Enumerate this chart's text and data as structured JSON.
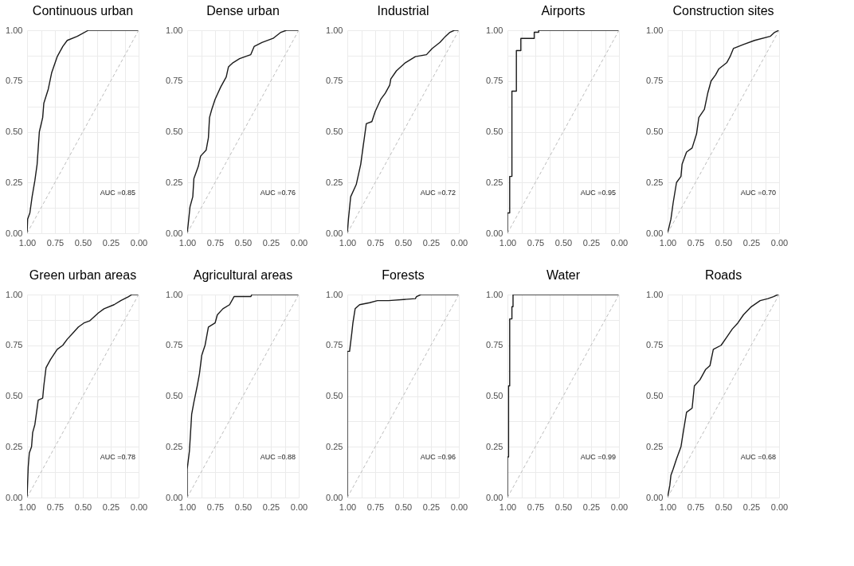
{
  "chart_data": [
    {
      "type": "line",
      "title": "Continuous urban",
      "xlim": [
        1,
        0
      ],
      "ylim": [
        0,
        1
      ],
      "grid": true,
      "annotations": [
        "AUC =0.85"
      ],
      "xticks": [
        {
          "value": 1,
          "label": "1.00"
        },
        {
          "value": 0.875,
          "label": null
        },
        {
          "value": 0.75,
          "label": "0.75"
        },
        {
          "value": 0.625,
          "label": null
        },
        {
          "value": 0.5,
          "label": "0.50"
        },
        {
          "value": 0.375,
          "label": null
        },
        {
          "value": 0.25,
          "label": "0.25"
        },
        {
          "value": 0.125,
          "label": null
        },
        {
          "value": 0,
          "label": "0.00"
        }
      ],
      "yticks": [
        {
          "value": 0,
          "label": "0.00"
        },
        {
          "value": 0.125,
          "label": null
        },
        {
          "value": 0.25,
          "label": "0.25"
        },
        {
          "value": 0.375,
          "label": null
        },
        {
          "value": 0.5,
          "label": "0.50"
        },
        {
          "value": 0.625,
          "label": null
        },
        {
          "value": 0.75,
          "label": "0.75"
        },
        {
          "value": 0.875,
          "label": null
        },
        {
          "value": 1,
          "label": "1.00"
        }
      ],
      "series": [
        {
          "color": "#1a1a1a",
          "x": [
            1,
            0.995,
            0.975,
            0.955,
            0.93,
            0.91,
            0.9,
            0.89,
            0.86,
            0.85,
            0.81,
            0.78,
            0.73,
            0.68,
            0.64,
            0.55,
            0.45,
            0.36,
            0
          ],
          "values": [
            0,
            0.07,
            0.1,
            0.18,
            0.26,
            0.34,
            0.42,
            0.5,
            0.57,
            0.64,
            0.71,
            0.79,
            0.87,
            0.92,
            0.95,
            0.97,
            1,
            1,
            1
          ]
        },
        {
          "color": "#bdbdbd",
          "line_style": "dashed",
          "x": [
            1,
            0
          ],
          "values": [
            0,
            1
          ]
        }
      ]
    },
    {
      "type": "line",
      "title": "Dense urban",
      "xlim": [
        1,
        0
      ],
      "ylim": [
        0,
        1
      ],
      "grid": true,
      "annotations": [
        "AUC =0.76"
      ],
      "xticks": [
        {
          "value": 1,
          "label": "1.00"
        },
        {
          "value": 0.875,
          "label": null
        },
        {
          "value": 0.75,
          "label": "0.75"
        },
        {
          "value": 0.625,
          "label": null
        },
        {
          "value": 0.5,
          "label": "0.50"
        },
        {
          "value": 0.375,
          "label": null
        },
        {
          "value": 0.25,
          "label": "0.25"
        },
        {
          "value": 0.125,
          "label": null
        },
        {
          "value": 0,
          "label": "0.00"
        }
      ],
      "yticks": [
        {
          "value": 0,
          "label": "0.00"
        },
        {
          "value": 0.125,
          "label": null
        },
        {
          "value": 0.25,
          "label": "0.25"
        },
        {
          "value": 0.375,
          "label": null
        },
        {
          "value": 0.5,
          "label": "0.50"
        },
        {
          "value": 0.625,
          "label": null
        },
        {
          "value": 0.75,
          "label": "0.75"
        },
        {
          "value": 0.875,
          "label": null
        },
        {
          "value": 1,
          "label": "1.00"
        }
      ],
      "series": [
        {
          "color": "#1a1a1a",
          "x": [
            1,
            0.99,
            0.975,
            0.95,
            0.94,
            0.9,
            0.88,
            0.83,
            0.81,
            0.8,
            0.78,
            0.75,
            0.7,
            0.65,
            0.63,
            0.59,
            0.53,
            0.43,
            0.4,
            0.33,
            0.23,
            0.16,
            0.11,
            0
          ],
          "values": [
            0,
            0.05,
            0.13,
            0.18,
            0.27,
            0.33,
            0.38,
            0.41,
            0.47,
            0.57,
            0.61,
            0.66,
            0.72,
            0.77,
            0.82,
            0.84,
            0.86,
            0.88,
            0.92,
            0.94,
            0.96,
            0.99,
            1,
            1
          ]
        },
        {
          "color": "#bdbdbd",
          "line_style": "dashed",
          "x": [
            1,
            0
          ],
          "values": [
            0,
            1
          ]
        }
      ]
    },
    {
      "type": "line",
      "title": "Industrial",
      "xlim": [
        1,
        0
      ],
      "ylim": [
        0,
        1
      ],
      "grid": true,
      "annotations": [
        "AUC =0.72"
      ],
      "xticks": [
        {
          "value": 1,
          "label": "1.00"
        },
        {
          "value": 0.875,
          "label": null
        },
        {
          "value": 0.75,
          "label": "0.75"
        },
        {
          "value": 0.625,
          "label": null
        },
        {
          "value": 0.5,
          "label": "0.50"
        },
        {
          "value": 0.375,
          "label": null
        },
        {
          "value": 0.25,
          "label": "0.25"
        },
        {
          "value": 0.125,
          "label": null
        },
        {
          "value": 0,
          "label": "0.00"
        }
      ],
      "yticks": [
        {
          "value": 0,
          "label": "0.00"
        },
        {
          "value": 0.125,
          "label": null
        },
        {
          "value": 0.25,
          "label": "0.25"
        },
        {
          "value": 0.375,
          "label": null
        },
        {
          "value": 0.5,
          "label": "0.50"
        },
        {
          "value": 0.625,
          "label": null
        },
        {
          "value": 0.75,
          "label": "0.75"
        },
        {
          "value": 0.875,
          "label": null
        },
        {
          "value": 1,
          "label": "1.00"
        }
      ],
      "series": [
        {
          "color": "#1a1a1a",
          "x": [
            1,
            0.99,
            0.97,
            0.92,
            0.88,
            0.86,
            0.83,
            0.78,
            0.75,
            0.7,
            0.66,
            0.62,
            0.61,
            0.56,
            0.48,
            0.39,
            0.29,
            0.24,
            0.17,
            0.12,
            0.08,
            0.04,
            0
          ],
          "values": [
            0,
            0.07,
            0.18,
            0.24,
            0.34,
            0.42,
            0.54,
            0.55,
            0.6,
            0.66,
            0.69,
            0.73,
            0.76,
            0.8,
            0.84,
            0.87,
            0.88,
            0.91,
            0.94,
            0.97,
            0.99,
            1,
            1
          ]
        },
        {
          "color": "#bdbdbd",
          "line_style": "dashed",
          "x": [
            1,
            0
          ],
          "values": [
            0,
            1
          ]
        }
      ]
    },
    {
      "type": "line",
      "title": "Airports",
      "xlim": [
        1,
        0
      ],
      "ylim": [
        0,
        1
      ],
      "grid": true,
      "annotations": [
        "AUC =0.95"
      ],
      "xticks": [
        {
          "value": 1,
          "label": "1.00"
        },
        {
          "value": 0.875,
          "label": null
        },
        {
          "value": 0.75,
          "label": "0.75"
        },
        {
          "value": 0.625,
          "label": null
        },
        {
          "value": 0.5,
          "label": "0.50"
        },
        {
          "value": 0.375,
          "label": null
        },
        {
          "value": 0.25,
          "label": "0.25"
        },
        {
          "value": 0.125,
          "label": null
        },
        {
          "value": 0,
          "label": "0.00"
        }
      ],
      "yticks": [
        {
          "value": 0,
          "label": "0.00"
        },
        {
          "value": 0.125,
          "label": null
        },
        {
          "value": 0.25,
          "label": "0.25"
        },
        {
          "value": 0.375,
          "label": null
        },
        {
          "value": 0.5,
          "label": "0.50"
        },
        {
          "value": 0.625,
          "label": null
        },
        {
          "value": 0.75,
          "label": "0.75"
        },
        {
          "value": 0.875,
          "label": null
        },
        {
          "value": 1,
          "label": "1.00"
        }
      ],
      "series": [
        {
          "color": "#1a1a1a",
          "x": [
            1,
            1,
            0.98,
            0.98,
            0.96,
            0.96,
            0.92,
            0.92,
            0.88,
            0.88,
            0.76,
            0.76,
            0.72,
            0.72,
            0
          ],
          "values": [
            0,
            0.1,
            0.1,
            0.28,
            0.28,
            0.7,
            0.7,
            0.9,
            0.9,
            0.96,
            0.96,
            0.99,
            0.99,
            1,
            1
          ]
        },
        {
          "color": "#bdbdbd",
          "line_style": "dashed",
          "x": [
            1,
            0
          ],
          "values": [
            0,
            1
          ]
        }
      ]
    },
    {
      "type": "line",
      "title": "Construction sites",
      "xlim": [
        1,
        0
      ],
      "ylim": [
        0,
        1
      ],
      "grid": true,
      "annotations": [
        "AUC =0.70"
      ],
      "xticks": [
        {
          "value": 1,
          "label": "1.00"
        },
        {
          "value": 0.875,
          "label": null
        },
        {
          "value": 0.75,
          "label": "0.75"
        },
        {
          "value": 0.625,
          "label": null
        },
        {
          "value": 0.5,
          "label": "0.50"
        },
        {
          "value": 0.375,
          "label": null
        },
        {
          "value": 0.25,
          "label": "0.25"
        },
        {
          "value": 0.125,
          "label": null
        },
        {
          "value": 0,
          "label": "0.00"
        }
      ],
      "yticks": [
        {
          "value": 0,
          "label": "0.00"
        },
        {
          "value": 0.125,
          "label": null
        },
        {
          "value": 0.25,
          "label": "0.25"
        },
        {
          "value": 0.375,
          "label": null
        },
        {
          "value": 0.5,
          "label": "0.50"
        },
        {
          "value": 0.625,
          "label": null
        },
        {
          "value": 0.75,
          "label": "0.75"
        },
        {
          "value": 0.875,
          "label": null
        },
        {
          "value": 1,
          "label": "1.00"
        }
      ],
      "series": [
        {
          "color": "#1a1a1a",
          "x": [
            1,
            0.97,
            0.95,
            0.92,
            0.88,
            0.87,
            0.83,
            0.78,
            0.74,
            0.72,
            0.67,
            0.64,
            0.61,
            0.57,
            0.54,
            0.47,
            0.44,
            0.41,
            0.32,
            0.22,
            0.08,
            0.04,
            0
          ],
          "values": [
            0,
            0.07,
            0.15,
            0.25,
            0.28,
            0.34,
            0.4,
            0.42,
            0.49,
            0.57,
            0.61,
            0.69,
            0.75,
            0.78,
            0.81,
            0.84,
            0.87,
            0.91,
            0.93,
            0.95,
            0.97,
            0.99,
            1
          ]
        },
        {
          "color": "#bdbdbd",
          "line_style": "dashed",
          "x": [
            1,
            0
          ],
          "values": [
            0,
            1
          ]
        }
      ]
    },
    {
      "type": "line",
      "title": "Green urban areas",
      "xlim": [
        1,
        0
      ],
      "ylim": [
        0,
        1
      ],
      "grid": true,
      "annotations": [
        "AUC =0.78"
      ],
      "xticks": [
        {
          "value": 1,
          "label": "1.00"
        },
        {
          "value": 0.875,
          "label": null
        },
        {
          "value": 0.75,
          "label": "0.75"
        },
        {
          "value": 0.625,
          "label": null
        },
        {
          "value": 0.5,
          "label": "0.50"
        },
        {
          "value": 0.375,
          "label": null
        },
        {
          "value": 0.25,
          "label": "0.25"
        },
        {
          "value": 0.125,
          "label": null
        },
        {
          "value": 0,
          "label": "0.00"
        }
      ],
      "yticks": [
        {
          "value": 0,
          "label": "0.00"
        },
        {
          "value": 0.125,
          "label": null
        },
        {
          "value": 0.25,
          "label": "0.25"
        },
        {
          "value": 0.375,
          "label": null
        },
        {
          "value": 0.5,
          "label": "0.50"
        },
        {
          "value": 0.625,
          "label": null
        },
        {
          "value": 0.75,
          "label": "0.75"
        },
        {
          "value": 0.875,
          "label": null
        },
        {
          "value": 1,
          "label": "1.00"
        }
      ],
      "series": [
        {
          "color": "#1a1a1a",
          "x": [
            1,
            0.99,
            0.98,
            0.96,
            0.95,
            0.93,
            0.91,
            0.9,
            0.86,
            0.85,
            0.83,
            0.79,
            0.73,
            0.68,
            0.64,
            0.59,
            0.54,
            0.49,
            0.44,
            0.36,
            0.31,
            0.22,
            0.16,
            0.09,
            0.06,
            0
          ],
          "values": [
            0,
            0.15,
            0.22,
            0.25,
            0.32,
            0.36,
            0.44,
            0.48,
            0.49,
            0.55,
            0.64,
            0.68,
            0.73,
            0.75,
            0.78,
            0.81,
            0.84,
            0.86,
            0.87,
            0.91,
            0.93,
            0.95,
            0.97,
            0.99,
            1,
            1
          ]
        },
        {
          "color": "#bdbdbd",
          "line_style": "dashed",
          "x": [
            1,
            0
          ],
          "values": [
            0,
            1
          ]
        }
      ]
    },
    {
      "type": "line",
      "title": "Agricultural areas",
      "xlim": [
        1,
        0
      ],
      "ylim": [
        0,
        1
      ],
      "grid": true,
      "annotations": [
        "AUC =0.88"
      ],
      "xticks": [
        {
          "value": 1,
          "label": "1.00"
        },
        {
          "value": 0.875,
          "label": null
        },
        {
          "value": 0.75,
          "label": "0.75"
        },
        {
          "value": 0.625,
          "label": null
        },
        {
          "value": 0.5,
          "label": "0.50"
        },
        {
          "value": 0.375,
          "label": null
        },
        {
          "value": 0.25,
          "label": "0.25"
        },
        {
          "value": 0.125,
          "label": null
        },
        {
          "value": 0,
          "label": "0.00"
        }
      ],
      "yticks": [
        {
          "value": 0,
          "label": "0.00"
        },
        {
          "value": 0.125,
          "label": null
        },
        {
          "value": 0.25,
          "label": "0.25"
        },
        {
          "value": 0.375,
          "label": null
        },
        {
          "value": 0.5,
          "label": "0.50"
        },
        {
          "value": 0.625,
          "label": null
        },
        {
          "value": 0.75,
          "label": "0.75"
        },
        {
          "value": 0.875,
          "label": null
        },
        {
          "value": 1,
          "label": "1.00"
        }
      ],
      "series": [
        {
          "color": "#1a1a1a",
          "x": [
            1,
            1,
            0.98,
            0.96,
            0.94,
            0.91,
            0.89,
            0.87,
            0.84,
            0.81,
            0.75,
            0.73,
            0.68,
            0.62,
            0.58,
            0.43,
            0.42,
            0
          ],
          "values": [
            0,
            0.14,
            0.23,
            0.41,
            0.47,
            0.55,
            0.61,
            0.7,
            0.75,
            0.84,
            0.86,
            0.9,
            0.93,
            0.95,
            0.99,
            0.99,
            1,
            1
          ]
        },
        {
          "color": "#bdbdbd",
          "line_style": "dashed",
          "x": [
            1,
            0
          ],
          "values": [
            0,
            1
          ]
        }
      ]
    },
    {
      "type": "line",
      "title": "Forests",
      "xlim": [
        1,
        0
      ],
      "ylim": [
        0,
        1
      ],
      "grid": true,
      "annotations": [
        "AUC =0.96"
      ],
      "xticks": [
        {
          "value": 1,
          "label": "1.00"
        },
        {
          "value": 0.875,
          "label": null
        },
        {
          "value": 0.75,
          "label": "0.75"
        },
        {
          "value": 0.625,
          "label": null
        },
        {
          "value": 0.5,
          "label": "0.50"
        },
        {
          "value": 0.375,
          "label": null
        },
        {
          "value": 0.25,
          "label": "0.25"
        },
        {
          "value": 0.125,
          "label": null
        },
        {
          "value": 0,
          "label": "0.00"
        }
      ],
      "yticks": [
        {
          "value": 0,
          "label": "0.00"
        },
        {
          "value": 0.125,
          "label": null
        },
        {
          "value": 0.25,
          "label": "0.25"
        },
        {
          "value": 0.375,
          "label": null
        },
        {
          "value": 0.5,
          "label": "0.50"
        },
        {
          "value": 0.625,
          "label": null
        },
        {
          "value": 0.75,
          "label": "0.75"
        },
        {
          "value": 0.875,
          "label": null
        },
        {
          "value": 1,
          "label": "1.00"
        }
      ],
      "series": [
        {
          "color": "#1a1a1a",
          "x": [
            1,
            1,
            0.98,
            0.96,
            0.95,
            0.93,
            0.89,
            0.8,
            0.73,
            0.63,
            0.39,
            0.38,
            0.34,
            0.05,
            0.03,
            0
          ],
          "values": [
            0,
            0.72,
            0.72,
            0.81,
            0.86,
            0.93,
            0.95,
            0.96,
            0.97,
            0.97,
            0.98,
            0.99,
            1,
            1,
            1,
            1
          ]
        },
        {
          "color": "#bdbdbd",
          "line_style": "dashed",
          "x": [
            1,
            0
          ],
          "values": [
            0,
            1
          ]
        }
      ]
    },
    {
      "type": "line",
      "title": "Water",
      "xlim": [
        1,
        0
      ],
      "ylim": [
        0,
        1
      ],
      "grid": true,
      "annotations": [
        "AUC =0.99"
      ],
      "xticks": [
        {
          "value": 1,
          "label": "1.00"
        },
        {
          "value": 0.875,
          "label": null
        },
        {
          "value": 0.75,
          "label": "0.75"
        },
        {
          "value": 0.625,
          "label": null
        },
        {
          "value": 0.5,
          "label": "0.50"
        },
        {
          "value": 0.375,
          "label": null
        },
        {
          "value": 0.25,
          "label": "0.25"
        },
        {
          "value": 0.125,
          "label": null
        },
        {
          "value": 0,
          "label": "0.00"
        }
      ],
      "yticks": [
        {
          "value": 0,
          "label": "0.00"
        },
        {
          "value": 0.125,
          "label": null
        },
        {
          "value": 0.25,
          "label": "0.25"
        },
        {
          "value": 0.375,
          "label": null
        },
        {
          "value": 0.5,
          "label": "0.50"
        },
        {
          "value": 0.625,
          "label": null
        },
        {
          "value": 0.75,
          "label": "0.75"
        },
        {
          "value": 0.875,
          "label": null
        },
        {
          "value": 1,
          "label": "1.00"
        }
      ],
      "series": [
        {
          "color": "#1a1a1a",
          "x": [
            1,
            1,
            0.99,
            0.99,
            0.98,
            0.98,
            0.96,
            0.96,
            0.95,
            0.95,
            0
          ],
          "values": [
            0,
            0.2,
            0.2,
            0.55,
            0.55,
            0.88,
            0.88,
            0.94,
            0.94,
            1,
            1
          ]
        },
        {
          "color": "#bdbdbd",
          "line_style": "dashed",
          "x": [
            1,
            0
          ],
          "values": [
            0,
            1
          ]
        }
      ]
    },
    {
      "type": "line",
      "title": "Roads",
      "xlim": [
        1,
        0
      ],
      "ylim": [
        0,
        1
      ],
      "grid": true,
      "annotations": [
        "AUC =0.68"
      ],
      "xticks": [
        {
          "value": 1,
          "label": "1.00"
        },
        {
          "value": 0.875,
          "label": null
        },
        {
          "value": 0.75,
          "label": "0.75"
        },
        {
          "value": 0.625,
          "label": null
        },
        {
          "value": 0.5,
          "label": "0.50"
        },
        {
          "value": 0.375,
          "label": null
        },
        {
          "value": 0.25,
          "label": "0.25"
        },
        {
          "value": 0.125,
          "label": null
        },
        {
          "value": 0,
          "label": "0.00"
        }
      ],
      "yticks": [
        {
          "value": 0,
          "label": "0.00"
        },
        {
          "value": 0.125,
          "label": null
        },
        {
          "value": 0.25,
          "label": "0.25"
        },
        {
          "value": 0.375,
          "label": null
        },
        {
          "value": 0.5,
          "label": "0.50"
        },
        {
          "value": 0.625,
          "label": null
        },
        {
          "value": 0.75,
          "label": "0.75"
        },
        {
          "value": 0.875,
          "label": null
        },
        {
          "value": 1,
          "label": "1.00"
        }
      ],
      "series": [
        {
          "color": "#1a1a1a",
          "x": [
            1,
            0.98,
            0.97,
            0.95,
            0.92,
            0.88,
            0.86,
            0.83,
            0.78,
            0.76,
            0.71,
            0.66,
            0.62,
            0.59,
            0.52,
            0.47,
            0.42,
            0.37,
            0.32,
            0.25,
            0.17,
            0.1,
            0.05,
            0.01,
            0
          ],
          "values": [
            0,
            0.06,
            0.11,
            0.14,
            0.19,
            0.25,
            0.32,
            0.42,
            0.44,
            0.55,
            0.58,
            0.63,
            0.65,
            0.73,
            0.75,
            0.79,
            0.83,
            0.86,
            0.9,
            0.94,
            0.97,
            0.98,
            0.99,
            1,
            1
          ]
        },
        {
          "color": "#bdbdbd",
          "line_style": "dashed",
          "x": [
            1,
            0
          ],
          "values": [
            0,
            1
          ]
        }
      ]
    }
  ]
}
